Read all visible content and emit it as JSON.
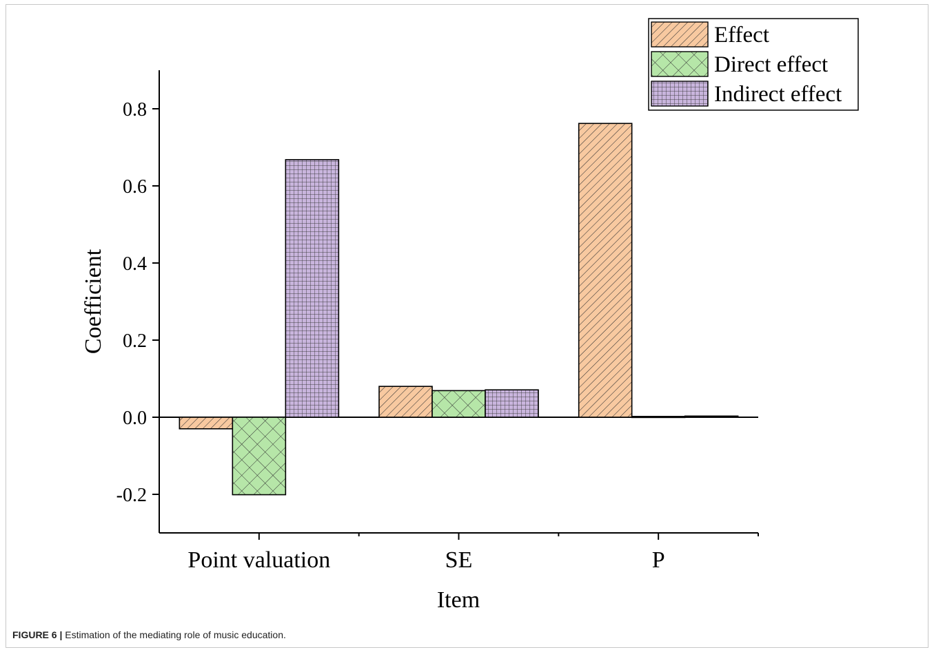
{
  "chart_data": {
    "type": "bar",
    "categories": [
      "Point valuation",
      "SE",
      "P"
    ],
    "series": [
      {
        "name": "Effect",
        "values": [
          -0.03,
          0.08,
          0.762
        ],
        "color": "#f8c9a0",
        "pattern": "diagonal-hatch"
      },
      {
        "name": "Direct effect",
        "values": [
          -0.201,
          0.069,
          0.002
        ],
        "color": "#b6e6a8",
        "pattern": "cross-hatch"
      },
      {
        "name": "Indirect effect",
        "values": [
          0.668,
          0.071,
          0.003
        ],
        "color": "#c9b5dd",
        "pattern": "grid"
      }
    ],
    "xlabel": "Item",
    "ylabel": "Coefficient",
    "ylim": [
      -0.3,
      0.9
    ],
    "yticks": [
      -0.2,
      0.0,
      0.2,
      0.4,
      0.6,
      0.8
    ],
    "ytick_labels": [
      "-0.2",
      "0.0",
      "0.2",
      "0.4",
      "0.6",
      "0.8"
    ],
    "legend_position": "top-right",
    "grid": false
  },
  "caption": {
    "label": "FIGURE 6 |",
    "text": "Estimation of the mediating role of music education."
  }
}
